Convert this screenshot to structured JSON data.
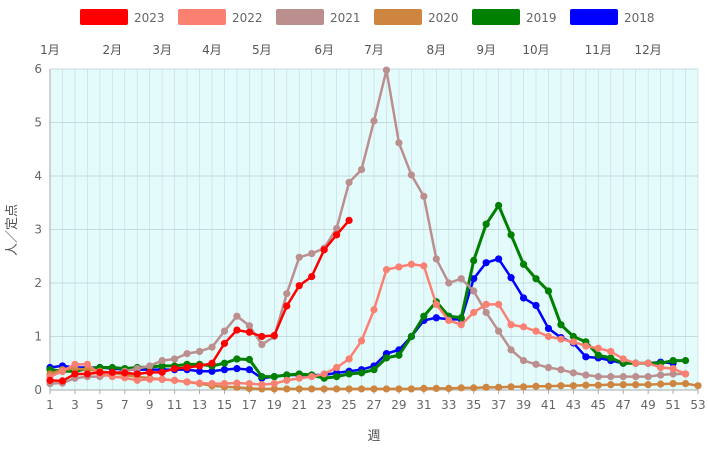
{
  "chart_data": {
    "type": "line",
    "xlabel": "週",
    "ylabel": "人／定点",
    "xlim": [
      1,
      53
    ],
    "ylim": [
      0,
      6
    ],
    "y_ticks": [
      0,
      1,
      2,
      3,
      4,
      5,
      6
    ],
    "x_ticks": [
      1,
      3,
      5,
      7,
      9,
      11,
      13,
      15,
      17,
      19,
      21,
      23,
      25,
      27,
      29,
      31,
      33,
      35,
      37,
      39,
      41,
      43,
      45,
      47,
      49,
      51,
      53
    ],
    "grid": true,
    "legend_position": "top",
    "background": "#e4fbfc",
    "months": [
      {
        "label": "1月",
        "week": 1
      },
      {
        "label": "2月",
        "week": 6
      },
      {
        "label": "3月",
        "week": 10
      },
      {
        "label": "4月",
        "week": 14
      },
      {
        "label": "5月",
        "week": 18
      },
      {
        "label": "6月",
        "week": 23
      },
      {
        "label": "7月",
        "week": 27
      },
      {
        "label": "8月",
        "week": 32
      },
      {
        "label": "9月",
        "week": 36
      },
      {
        "label": "10月",
        "week": 40
      },
      {
        "label": "11月",
        "week": 45
      },
      {
        "label": "12月",
        "week": 49
      }
    ],
    "series": [
      {
        "name": "2023",
        "color": "#ff0000",
        "width": 2.5,
        "x_start": 1,
        "values": [
          0.18,
          0.17,
          0.3,
          0.3,
          0.33,
          0.33,
          0.32,
          0.3,
          0.33,
          0.33,
          0.4,
          0.42,
          0.45,
          0.5,
          0.87,
          1.12,
          1.08,
          1.0,
          1.02,
          1.57,
          1.95,
          2.12,
          2.62,
          2.9,
          3.17
        ]
      },
      {
        "name": "2022",
        "color": "#fa8072",
        "width": 2.5,
        "x_start": 1,
        "values": [
          0.25,
          0.35,
          0.48,
          0.48,
          0.3,
          0.25,
          0.23,
          0.18,
          0.2,
          0.2,
          0.18,
          0.15,
          0.13,
          0.12,
          0.12,
          0.13,
          0.12,
          0.1,
          0.12,
          0.18,
          0.22,
          0.25,
          0.3,
          0.42,
          0.58,
          0.92,
          1.5,
          2.25,
          2.3,
          2.35,
          2.32,
          1.6,
          1.3,
          1.22,
          1.45,
          1.6,
          1.6,
          1.22,
          1.18,
          1.1,
          1.0,
          0.95,
          0.9,
          0.82,
          0.78,
          0.72,
          0.58,
          0.5,
          0.5,
          0.42,
          0.4,
          0.3
        ]
      },
      {
        "name": "2021",
        "color": "#bc8f8f",
        "width": 2.5,
        "x_start": 1,
        "values": [
          0.12,
          0.13,
          0.22,
          0.25,
          0.25,
          0.3,
          0.35,
          0.4,
          0.45,
          0.55,
          0.58,
          0.68,
          0.72,
          0.8,
          1.1,
          1.38,
          1.2,
          0.85,
          1.0,
          1.8,
          2.48,
          2.55,
          2.65,
          3.02,
          3.88,
          4.12,
          5.03,
          5.98,
          4.62,
          4.02,
          3.62,
          2.45,
          2.0,
          2.08,
          1.85,
          1.45,
          1.1,
          0.75,
          0.55,
          0.48,
          0.42,
          0.38,
          0.32,
          0.28,
          0.25,
          0.25,
          0.25,
          0.25,
          0.25,
          0.28,
          0.3,
          0.3
        ]
      },
      {
        "name": "2020",
        "color": "#cd853f",
        "width": 2.5,
        "x_start": 1,
        "values": [
          0.3,
          0.38,
          0.4,
          0.38,
          0.35,
          0.32,
          0.28,
          0.25,
          0.22,
          0.2,
          0.18,
          0.15,
          0.12,
          0.08,
          0.06,
          0.05,
          0.03,
          0.02,
          0.02,
          0.02,
          0.02,
          0.02,
          0.02,
          0.02,
          0.02,
          0.02,
          0.02,
          0.02,
          0.02,
          0.02,
          0.03,
          0.03,
          0.03,
          0.04,
          0.04,
          0.05,
          0.05,
          0.06,
          0.06,
          0.07,
          0.07,
          0.08,
          0.08,
          0.09,
          0.09,
          0.1,
          0.1,
          0.1,
          0.1,
          0.11,
          0.12,
          0.12,
          0.08
        ]
      },
      {
        "name": "2019",
        "color": "#008000",
        "width": 3,
        "x_start": 1,
        "values": [
          0.38,
          0.35,
          0.35,
          0.4,
          0.42,
          0.42,
          0.4,
          0.42,
          0.43,
          0.45,
          0.45,
          0.48,
          0.48,
          0.45,
          0.5,
          0.58,
          0.57,
          0.25,
          0.25,
          0.28,
          0.3,
          0.28,
          0.22,
          0.25,
          0.3,
          0.32,
          0.38,
          0.6,
          0.65,
          1.0,
          1.38,
          1.65,
          1.38,
          1.35,
          2.42,
          3.1,
          3.45,
          2.9,
          2.35,
          2.08,
          1.85,
          1.22,
          1.0,
          0.9,
          0.65,
          0.6,
          0.5,
          0.5,
          0.5,
          0.5,
          0.55,
          0.55
        ]
      },
      {
        "name": "2018",
        "color": "#0000ff",
        "width": 2.5,
        "x_start": 1,
        "values": [
          0.42,
          0.45,
          0.42,
          0.42,
          0.42,
          0.4,
          0.38,
          0.38,
          0.38,
          0.38,
          0.38,
          0.38,
          0.35,
          0.35,
          0.38,
          0.4,
          0.38,
          0.22,
          0.25,
          0.28,
          0.28,
          0.28,
          0.28,
          0.32,
          0.35,
          0.38,
          0.45,
          0.68,
          0.75,
          1.0,
          1.3,
          1.35,
          1.32,
          1.32,
          2.08,
          2.38,
          2.45,
          2.1,
          1.72,
          1.58,
          1.15,
          0.98,
          0.88,
          0.62,
          0.6,
          0.55,
          0.5,
          0.5,
          0.5,
          0.52,
          0.5
        ]
      }
    ]
  }
}
